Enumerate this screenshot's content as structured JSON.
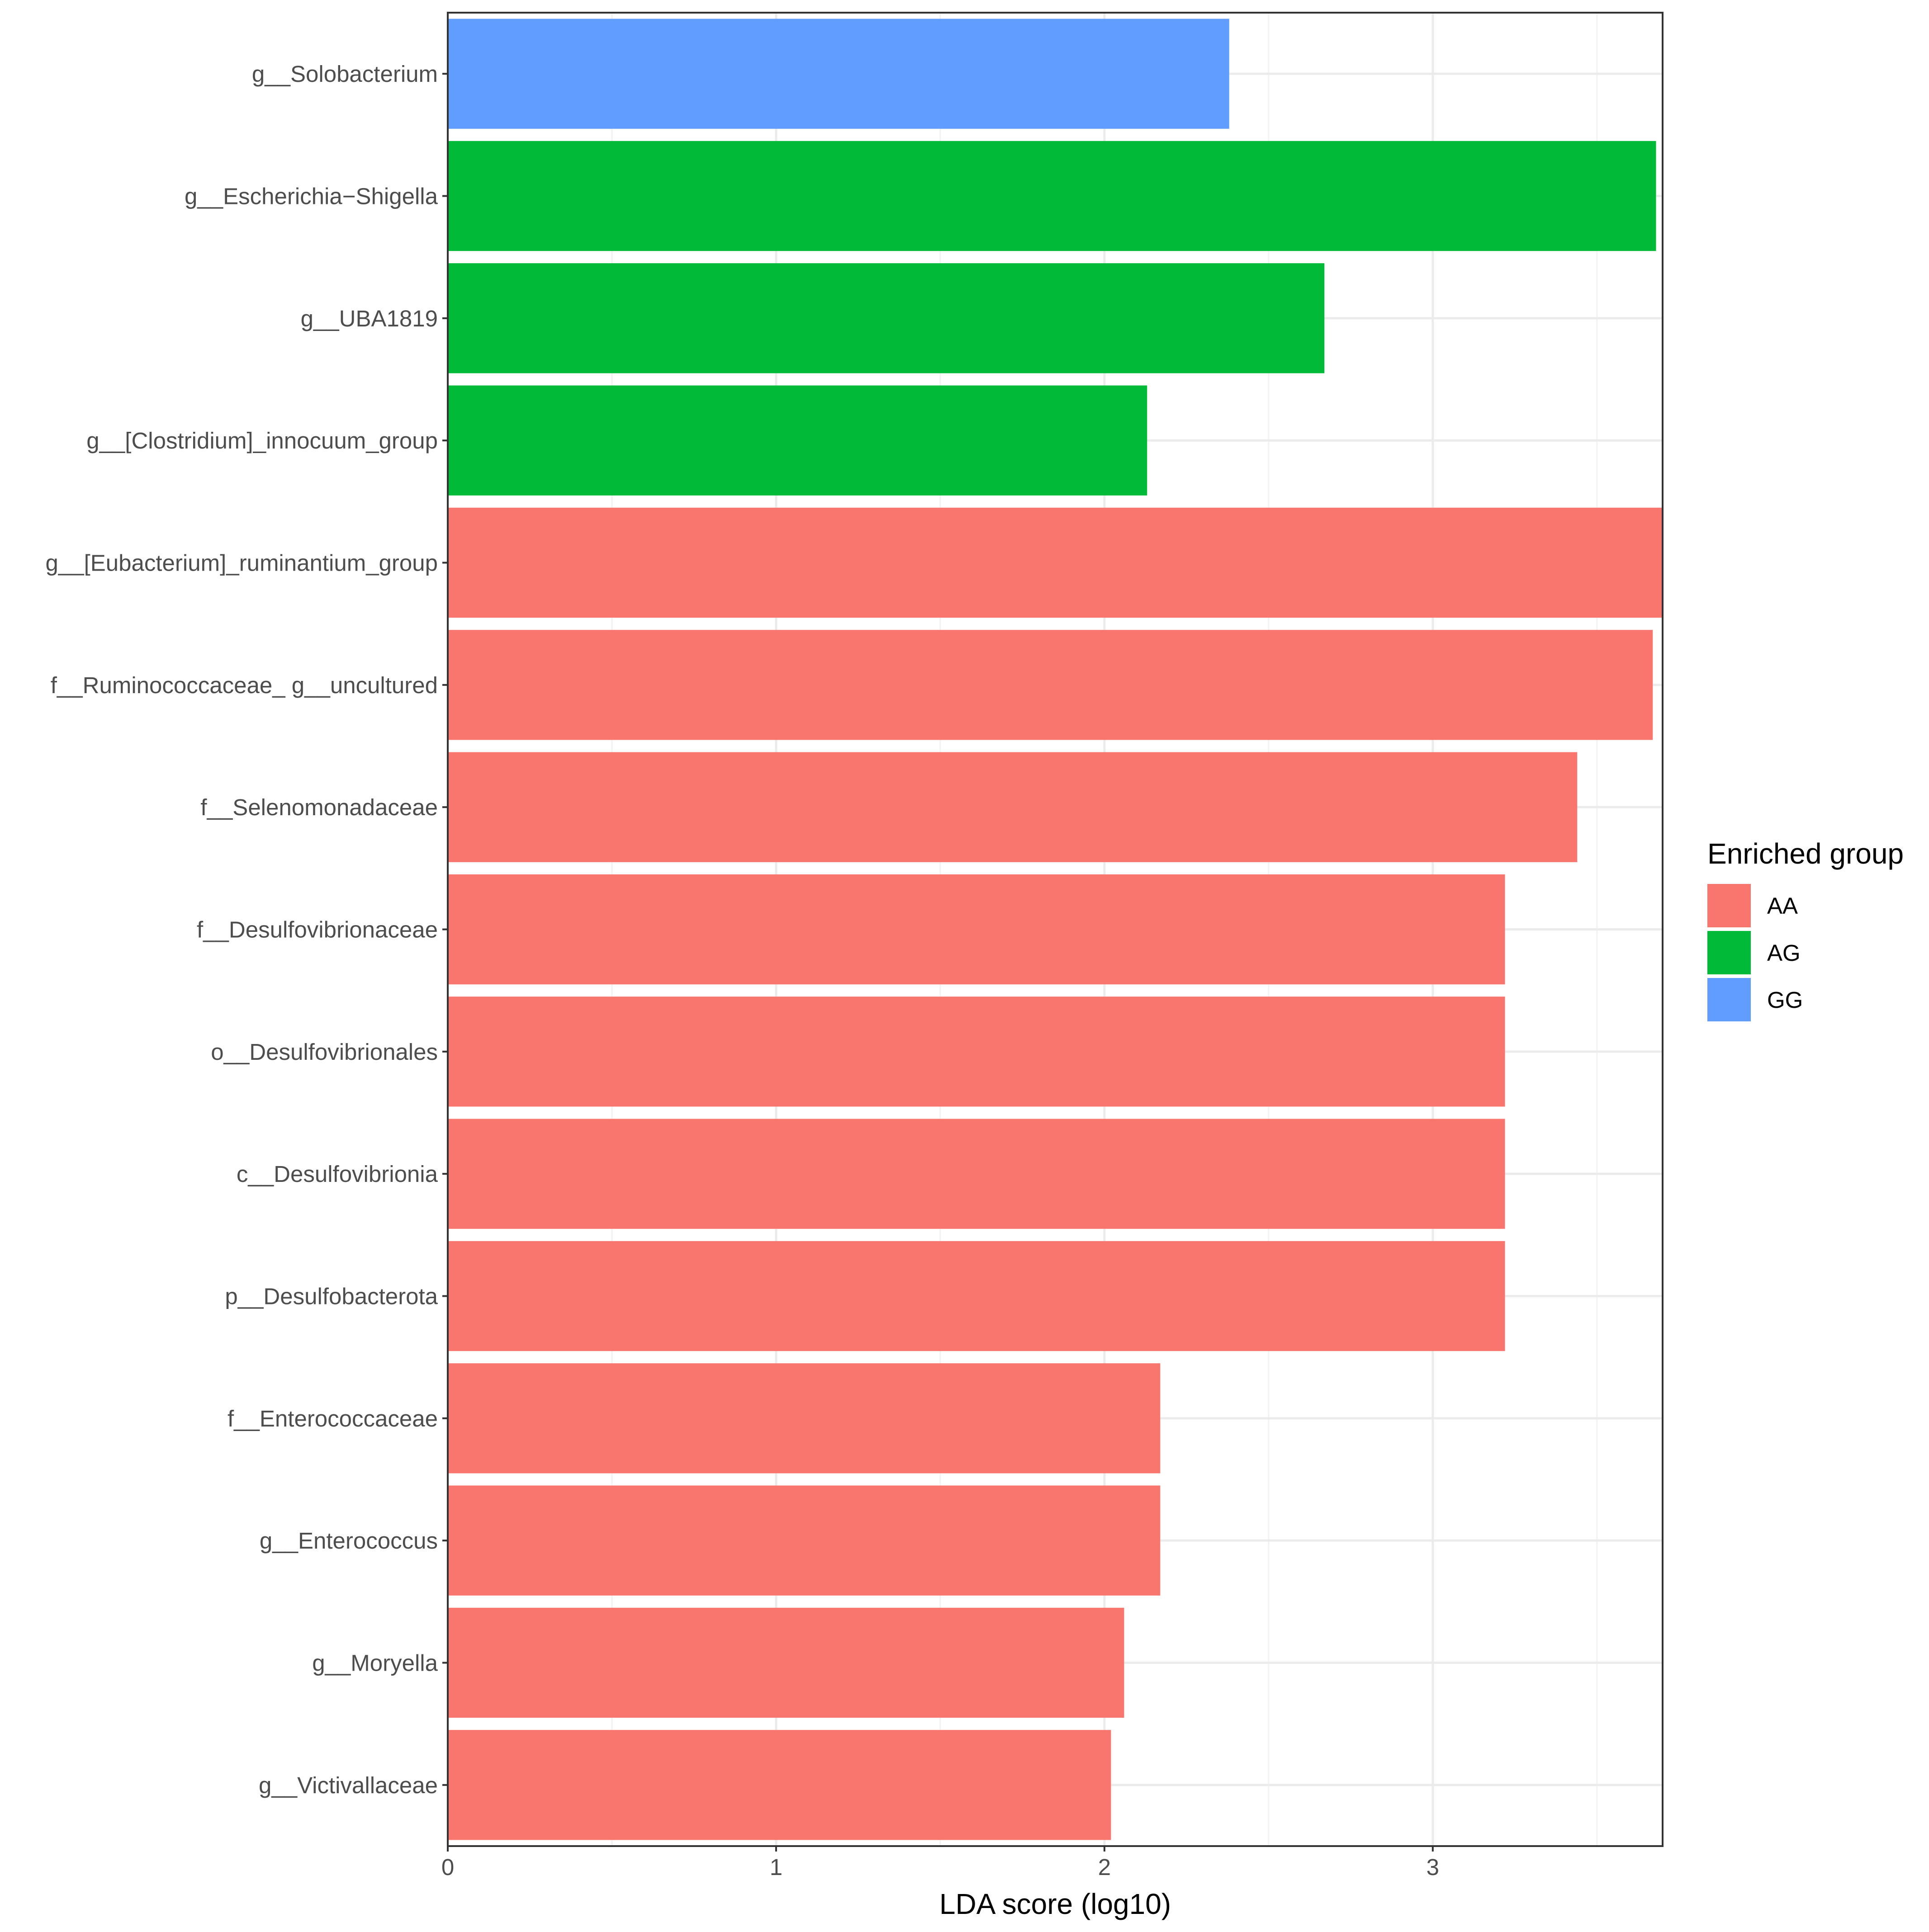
{
  "chart_data": {
    "type": "bar",
    "orientation": "horizontal",
    "title": "",
    "xlabel": "LDA score (log10)",
    "ylabel": "",
    "xlim": [
      0,
      3.7
    ],
    "x_ticks": [
      "0",
      "1",
      "2",
      "3"
    ],
    "grid": true,
    "legend_position": "right",
    "legend_title": "Enriched group",
    "groups": [
      {
        "name": "AA",
        "color": "#F8766D"
      },
      {
        "name": "AG",
        "color": "#00BA38"
      },
      {
        "name": "GG",
        "color": "#619CFF"
      }
    ],
    "categories": [
      "g__Solobacterium",
      "g__Escherichia−Shigella",
      "g__UBA1819",
      "g__[Clostridium]_innocuum_group",
      "g__[Eubacterium]_ruminantium_group",
      "f__Ruminococcaceae_ g__uncultured",
      "f__Selenomonadaceae",
      "f__Desulfovibrionaceae",
      "o__Desulfovibrionales",
      "c__Desulfovibrionia",
      "p__Desulfobacterota",
      "f__Enterococcaceae",
      "g__Enterococcus",
      "g__Moryella",
      "g__Victivallaceae"
    ],
    "values": [
      2.38,
      3.68,
      2.67,
      2.13,
      3.7,
      3.67,
      3.44,
      3.22,
      3.22,
      3.22,
      3.22,
      2.17,
      2.17,
      2.06,
      2.02
    ],
    "bar_groups": [
      "GG",
      "AG",
      "AG",
      "AG",
      "AA",
      "AA",
      "AA",
      "AA",
      "AA",
      "AA",
      "AA",
      "AA",
      "AA",
      "AA",
      "AA"
    ]
  }
}
